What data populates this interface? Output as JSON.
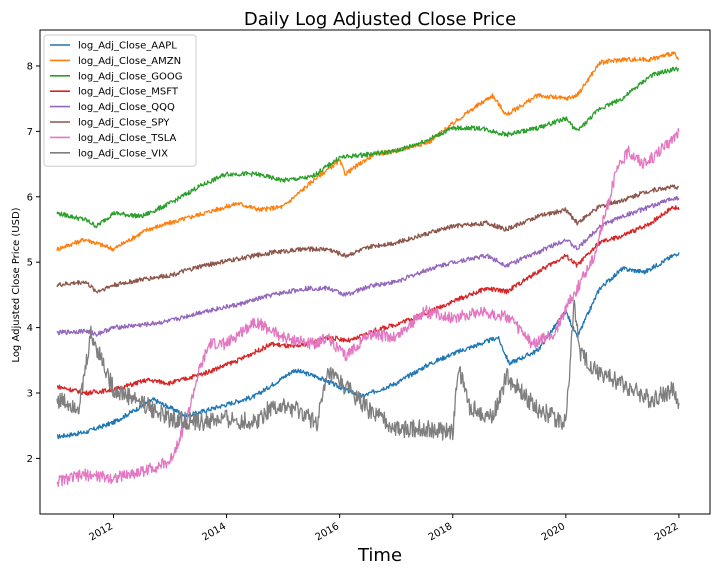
{
  "chart_data": {
    "type": "line",
    "title": "Daily Log Adjusted Close Price",
    "xlabel": "Time",
    "ylabel": "Log Adjusted Close Price (USD)",
    "xlim": [
      2010.7,
      2022.55
    ],
    "ylim": [
      1.15,
      8.55
    ],
    "x_ticks": [
      "2012",
      "2014",
      "2016",
      "2018",
      "2020",
      "2022"
    ],
    "y_ticks": [
      "2",
      "3",
      "4",
      "5",
      "6",
      "7",
      "8"
    ],
    "grid": false,
    "legend_position": "top-left",
    "series": [
      {
        "name": "log_Adj_Close_AAPL",
        "color": "#1f77b4",
        "x": [
          2011.0,
          2011.5,
          2012.0,
          2012.7,
          2013.3,
          2013.9,
          2014.5,
          2015.2,
          2015.6,
          2016.1,
          2016.4,
          2017.0,
          2017.6,
          2018.0,
          2018.8,
          2019.0,
          2019.5,
          2020.0,
          2020.2,
          2020.6,
          2021.0,
          2021.4,
          2021.9,
          2022.0
        ],
        "y": [
          2.33,
          2.4,
          2.55,
          2.9,
          2.65,
          2.8,
          2.95,
          3.35,
          3.25,
          3.05,
          2.95,
          3.15,
          3.45,
          3.6,
          3.85,
          3.45,
          3.65,
          4.25,
          3.85,
          4.6,
          4.9,
          4.85,
          5.1,
          5.15
        ]
      },
      {
        "name": "log_Adj_Close_AMZN",
        "color": "#ff7f0e",
        "x": [
          2011.0,
          2011.5,
          2012.0,
          2012.6,
          2013.0,
          2013.6,
          2014.2,
          2014.6,
          2015.0,
          2015.6,
          2016.0,
          2016.1,
          2016.6,
          2017.0,
          2017.6,
          2018.2,
          2018.7,
          2018.95,
          2019.5,
          2020.0,
          2020.2,
          2020.6,
          2021.0,
          2021.5,
          2021.9,
          2022.0
        ],
        "y": [
          5.2,
          5.35,
          5.2,
          5.5,
          5.6,
          5.75,
          5.9,
          5.8,
          5.85,
          6.3,
          6.55,
          6.35,
          6.65,
          6.7,
          6.85,
          7.25,
          7.55,
          7.25,
          7.55,
          7.5,
          7.55,
          8.05,
          8.1,
          8.1,
          8.2,
          8.1
        ]
      },
      {
        "name": "log_Adj_Close_GOOG",
        "color": "#2ca02c",
        "x": [
          2011.0,
          2011.5,
          2011.7,
          2012.0,
          2012.5,
          2013.0,
          2013.5,
          2014.0,
          2014.5,
          2015.0,
          2015.5,
          2016.0,
          2016.5,
          2017.0,
          2017.5,
          2018.0,
          2018.5,
          2018.95,
          2019.5,
          2020.0,
          2020.2,
          2020.6,
          2021.0,
          2021.5,
          2021.9,
          2022.0
        ],
        "y": [
          5.75,
          5.65,
          5.55,
          5.75,
          5.7,
          5.9,
          6.15,
          6.35,
          6.35,
          6.25,
          6.3,
          6.6,
          6.65,
          6.7,
          6.85,
          7.05,
          7.05,
          6.95,
          7.05,
          7.2,
          7.0,
          7.35,
          7.5,
          7.85,
          7.95,
          7.95
        ]
      },
      {
        "name": "log_Adj_Close_MSFT",
        "color": "#d62728",
        "x": [
          2011.0,
          2011.5,
          2012.0,
          2012.6,
          2013.0,
          2013.6,
          2014.2,
          2014.8,
          2015.2,
          2015.8,
          2016.2,
          2016.6,
          2017.0,
          2017.6,
          2018.0,
          2018.6,
          2018.95,
          2019.5,
          2020.0,
          2020.2,
          2020.6,
          2021.0,
          2021.5,
          2021.9,
          2022.0
        ],
        "y": [
          3.1,
          3.0,
          3.05,
          3.2,
          3.15,
          3.3,
          3.5,
          3.75,
          3.7,
          3.85,
          3.8,
          3.95,
          4.05,
          4.25,
          4.4,
          4.6,
          4.55,
          4.85,
          5.1,
          4.95,
          5.3,
          5.4,
          5.6,
          5.85,
          5.8
        ]
      },
      {
        "name": "log_Adj_Close_QQQ",
        "color": "#9467bd",
        "x": [
          2011.0,
          2011.5,
          2011.7,
          2012.0,
          2012.6,
          2013.0,
          2013.6,
          2014.2,
          2014.8,
          2015.4,
          2015.8,
          2016.1,
          2016.6,
          2017.0,
          2017.6,
          2018.0,
          2018.6,
          2018.95,
          2019.5,
          2020.0,
          2020.2,
          2020.6,
          2021.0,
          2021.5,
          2021.9,
          2022.0
        ],
        "y": [
          3.92,
          3.95,
          3.9,
          4.0,
          4.05,
          4.1,
          4.25,
          4.35,
          4.5,
          4.6,
          4.6,
          4.5,
          4.65,
          4.7,
          4.9,
          5.0,
          5.1,
          4.95,
          5.15,
          5.35,
          5.2,
          5.55,
          5.7,
          5.85,
          5.98,
          5.98
        ]
      },
      {
        "name": "log_Adj_Close_SPY",
        "color": "#8c564b",
        "x": [
          2011.0,
          2011.5,
          2011.7,
          2012.0,
          2012.6,
          2013.0,
          2013.6,
          2014.2,
          2014.8,
          2015.4,
          2015.8,
          2016.1,
          2016.6,
          2017.0,
          2017.6,
          2018.0,
          2018.6,
          2018.95,
          2019.5,
          2020.0,
          2020.2,
          2020.6,
          2021.0,
          2021.5,
          2021.9,
          2022.0
        ],
        "y": [
          4.65,
          4.7,
          4.55,
          4.65,
          4.75,
          4.8,
          4.95,
          5.05,
          5.15,
          5.2,
          5.2,
          5.1,
          5.25,
          5.3,
          5.45,
          5.55,
          5.6,
          5.5,
          5.7,
          5.8,
          5.6,
          5.85,
          5.95,
          6.1,
          6.15,
          6.15
        ]
      },
      {
        "name": "log_Adj_Close_TSLA",
        "color": "#e377c2",
        "x": [
          2011.0,
          2011.5,
          2012.0,
          2012.5,
          2013.0,
          2013.3,
          2013.5,
          2013.7,
          2014.0,
          2014.5,
          2015.0,
          2015.5,
          2015.8,
          2016.1,
          2016.5,
          2017.0,
          2017.5,
          2018.0,
          2018.5,
          2019.0,
          2019.4,
          2019.8,
          2020.0,
          2020.2,
          2020.5,
          2020.9,
          2021.1,
          2021.4,
          2021.8,
          2022.0
        ],
        "y": [
          1.65,
          1.75,
          1.7,
          1.8,
          1.95,
          2.6,
          3.3,
          3.75,
          3.75,
          4.1,
          3.85,
          3.75,
          3.85,
          3.55,
          3.9,
          3.85,
          4.25,
          4.15,
          4.25,
          4.15,
          3.75,
          3.9,
          4.3,
          4.6,
          5.1,
          6.4,
          6.7,
          6.5,
          6.8,
          7.0
        ]
      },
      {
        "name": "log_Adj_Close_VIX",
        "color": "#7f7f7f",
        "x": [
          2011.0,
          2011.4,
          2011.6,
          2011.8,
          2012.0,
          2012.4,
          2012.7,
          2013.0,
          2013.5,
          2014.0,
          2014.5,
          2014.8,
          2015.2,
          2015.6,
          2015.8,
          2016.1,
          2016.5,
          2017.0,
          2017.5,
          2018.0,
          2018.1,
          2018.3,
          2018.7,
          2018.95,
          2019.5,
          2020.0,
          2020.15,
          2020.25,
          2020.6,
          2021.0,
          2021.5,
          2021.9,
          2022.0
        ],
        "y": [
          2.9,
          2.8,
          3.9,
          3.5,
          3.05,
          2.9,
          2.75,
          2.6,
          2.55,
          2.6,
          2.55,
          2.8,
          2.75,
          2.55,
          3.3,
          3.1,
          2.75,
          2.45,
          2.45,
          2.4,
          3.4,
          2.8,
          2.6,
          3.25,
          2.75,
          2.55,
          4.4,
          3.6,
          3.3,
          3.15,
          2.9,
          3.05,
          2.85
        ]
      }
    ]
  }
}
